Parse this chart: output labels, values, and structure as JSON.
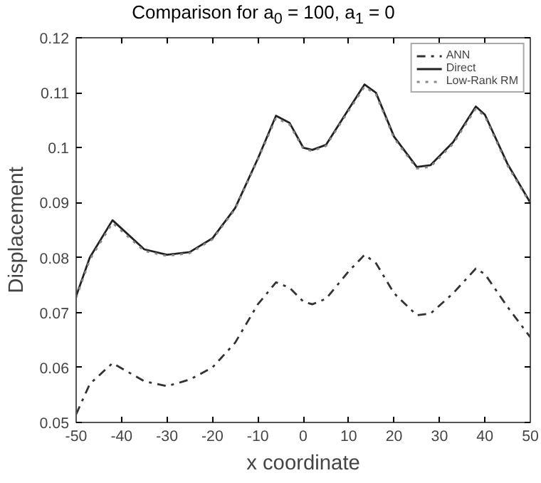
{
  "chart_data": {
    "type": "line",
    "title": "Comparison for a$_{0}$ = 100, a$_{1}$ = 0",
    "xlabel": "x coordinate",
    "ylabel": "Displacement",
    "x": [
      -50,
      -47,
      -42,
      -35,
      -30,
      -25,
      -20,
      -15,
      -10,
      -6,
      -3,
      0,
      2,
      5,
      10,
      13.5,
      16,
      20,
      25,
      28,
      33,
      38,
      40,
      45,
      50
    ],
    "series": [
      {
        "name": "ANN",
        "color": "#333333",
        "line_style": "dashdot",
        "values": [
          0.0515,
          0.057,
          0.0608,
          0.0575,
          0.0566,
          0.0578,
          0.06,
          0.0645,
          0.0715,
          0.0755,
          0.0745,
          0.072,
          0.0715,
          0.0725,
          0.0775,
          0.0805,
          0.079,
          0.0735,
          0.0695,
          0.0698,
          0.0735,
          0.078,
          0.077,
          0.071,
          0.0655
        ]
      },
      {
        "name": "Direct",
        "color": "#222222",
        "line_style": "solid",
        "values": [
          0.073,
          0.08,
          0.0868,
          0.0815,
          0.0805,
          0.081,
          0.0835,
          0.089,
          0.098,
          0.1058,
          0.1045,
          0.1,
          0.0996,
          0.1005,
          0.107,
          0.1115,
          0.11,
          0.102,
          0.0965,
          0.0968,
          0.101,
          0.1075,
          0.106,
          0.097,
          0.09
        ]
      },
      {
        "name": "Low-Rank RM",
        "color": "#888888",
        "line_style": "dotted",
        "values": [
          0.0727,
          0.0796,
          0.0863,
          0.0812,
          0.0803,
          0.0808,
          0.0833,
          0.0888,
          0.0978,
          0.1054,
          0.1042,
          0.0998,
          0.0994,
          0.1003,
          0.1067,
          0.1111,
          0.1097,
          0.1017,
          0.0962,
          0.0965,
          0.1007,
          0.1071,
          0.1057,
          0.0967,
          0.0898
        ]
      }
    ],
    "xlim": [
      -50,
      50
    ],
    "ylim": [
      0.05,
      0.12
    ],
    "xticks": [
      -50,
      -40,
      -30,
      -20,
      -10,
      0,
      10,
      20,
      30,
      40,
      50
    ],
    "yticks": [
      0.05,
      0.06,
      0.07,
      0.08,
      0.09,
      {
        "value": 0.1,
        "label": "0.1"
      },
      0.11,
      0.12
    ],
    "grid": false,
    "legend": "top right"
  }
}
